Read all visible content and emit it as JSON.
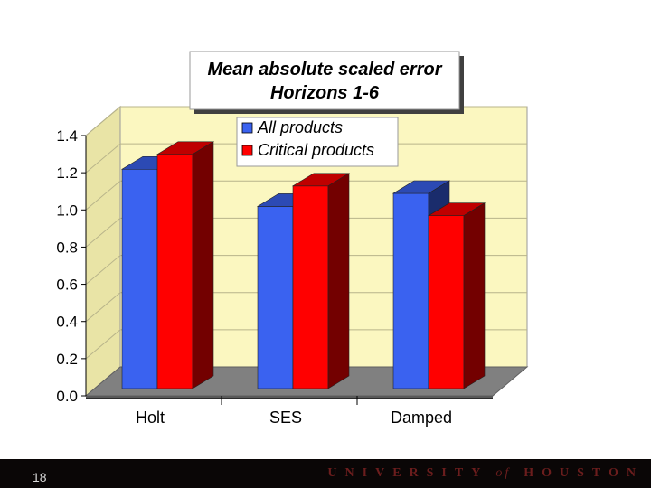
{
  "chart_data": {
    "type": "bar",
    "title_line1": "Mean absolute scaled error",
    "title_line2": "Horizons 1-6",
    "categories": [
      "Holt",
      "SES",
      "Damped"
    ],
    "series": [
      {
        "name": "All products",
        "values": [
          1.18,
          0.98,
          1.05
        ],
        "color": "#3a62f0"
      },
      {
        "name": "Critical products",
        "values": [
          1.26,
          1.09,
          0.93
        ],
        "color": "#ff0000"
      }
    ],
    "y_ticks": [
      "0.0",
      "0.2",
      "0.4",
      "0.6",
      "0.8",
      "1.0",
      "1.2",
      "1.4"
    ],
    "ylim": [
      0,
      1.4
    ],
    "legend_position": "top-center",
    "wall_color": "#fbf7c0",
    "floor_color": "#808080"
  },
  "footer": {
    "slide_number": "18",
    "logo_university": "UNIVERSITY",
    "logo_of": "of",
    "logo_houston": "HOUSTON"
  }
}
